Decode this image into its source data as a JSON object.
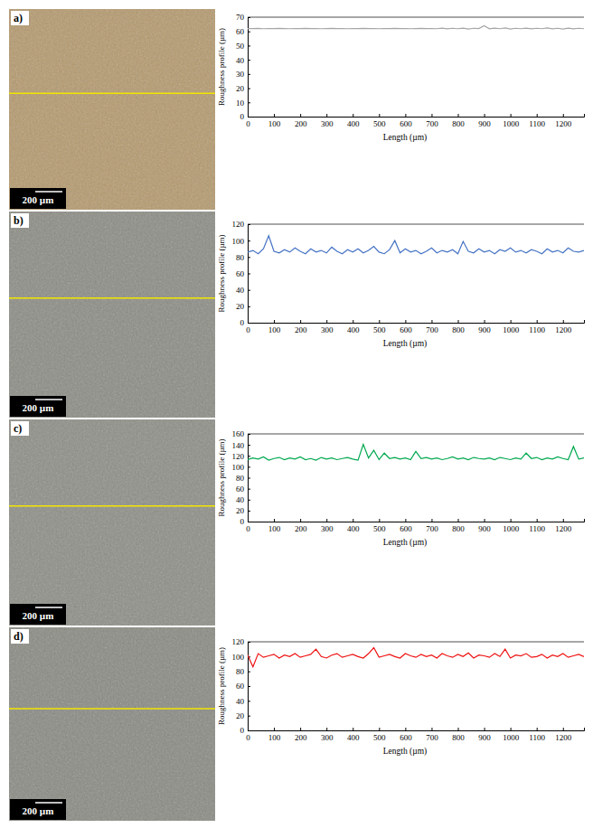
{
  "chart_data": [
    {
      "type": "line",
      "x_label": "Length (µm)",
      "y_label": "Roughness profile (µm)",
      "x": [
        0,
        20,
        40,
        60,
        80,
        100,
        120,
        140,
        160,
        180,
        200,
        220,
        240,
        260,
        280,
        300,
        320,
        340,
        360,
        380,
        400,
        420,
        440,
        460,
        480,
        500,
        520,
        540,
        560,
        580,
        600,
        620,
        640,
        660,
        680,
        700,
        720,
        740,
        760,
        780,
        800,
        820,
        840,
        860,
        880,
        900,
        920,
        940,
        960,
        980,
        1000,
        1020,
        1040,
        1060,
        1080,
        1100,
        1120,
        1140,
        1160,
        1180,
        1200,
        1220,
        1240,
        1260,
        1280
      ],
      "series": [
        {
          "color": "#a6a6a6",
          "values": [
            62,
            62,
            62.1,
            61.9,
            62,
            62,
            62.1,
            62,
            61.9,
            62,
            62,
            62.1,
            62,
            62,
            61.9,
            62,
            62.1,
            62,
            62,
            61.9,
            62,
            62,
            62.1,
            62,
            62,
            61.9,
            62,
            62,
            62.1,
            62,
            62,
            61.9,
            62,
            62.1,
            62,
            62,
            61.9,
            62.3,
            61.8,
            62.2,
            61.9,
            62.3,
            61.7,
            62.2,
            62,
            64,
            61.8,
            62.3,
            61.9,
            62.4,
            61.7,
            62.2,
            61.9,
            62.3,
            61.8,
            62.2,
            61.9,
            62.4,
            61.8,
            62.2,
            61.7,
            62.3,
            61.8,
            62.2,
            61.9
          ]
        }
      ],
      "xlim": [
        0,
        1280
      ],
      "xticks": [
        0,
        100,
        200,
        300,
        400,
        500,
        600,
        700,
        800,
        900,
        1000,
        1100,
        1200
      ],
      "ylim": [
        0,
        70
      ],
      "yticks": [
        0,
        10,
        20,
        30,
        40,
        50,
        60,
        70
      ]
    },
    {
      "type": "line",
      "x_label": "Length (µm)",
      "y_label": "Roughness profile (µm)",
      "x": [
        0,
        20,
        40,
        60,
        80,
        100,
        120,
        140,
        160,
        180,
        200,
        220,
        240,
        260,
        280,
        300,
        320,
        340,
        360,
        380,
        400,
        420,
        440,
        460,
        480,
        500,
        520,
        540,
        560,
        580,
        600,
        620,
        640,
        660,
        680,
        700,
        720,
        740,
        760,
        780,
        800,
        820,
        840,
        860,
        880,
        900,
        920,
        940,
        960,
        980,
        1000,
        1020,
        1040,
        1060,
        1080,
        1100,
        1120,
        1140,
        1160,
        1180,
        1200,
        1220,
        1240,
        1260,
        1280
      ],
      "series": [
        {
          "color": "#4472c4",
          "values": [
            86,
            88,
            84,
            90,
            106,
            87,
            85,
            89,
            86,
            91,
            87,
            84,
            90,
            86,
            88,
            85,
            92,
            87,
            84,
            89,
            86,
            90,
            85,
            88,
            93,
            86,
            84,
            89,
            100,
            85,
            90,
            86,
            88,
            84,
            87,
            91,
            85,
            88,
            86,
            89,
            84,
            99,
            87,
            85,
            90,
            86,
            88,
            84,
            89,
            87,
            91,
            86,
            88,
            85,
            89,
            87,
            84,
            90,
            86,
            88,
            85,
            91,
            87,
            86,
            88
          ]
        }
      ],
      "xlim": [
        0,
        1280
      ],
      "xticks": [
        0,
        100,
        200,
        300,
        400,
        500,
        600,
        700,
        800,
        900,
        1000,
        1100,
        1200
      ],
      "ylim": [
        0,
        120
      ],
      "yticks": [
        0,
        20,
        40,
        60,
        80,
        100,
        120
      ]
    },
    {
      "type": "line",
      "x_label": "Length (µm)",
      "y_label": "Roughness profile (µm)",
      "x": [
        0,
        20,
        40,
        60,
        80,
        100,
        120,
        140,
        160,
        180,
        200,
        220,
        240,
        260,
        280,
        300,
        320,
        340,
        360,
        380,
        400,
        420,
        440,
        460,
        480,
        500,
        520,
        540,
        560,
        580,
        600,
        620,
        640,
        660,
        680,
        700,
        720,
        740,
        760,
        780,
        800,
        820,
        840,
        860,
        880,
        900,
        920,
        940,
        960,
        980,
        1000,
        1020,
        1040,
        1060,
        1080,
        1100,
        1120,
        1140,
        1160,
        1180,
        1200,
        1220,
        1240,
        1260,
        1280
      ],
      "series": [
        {
          "color": "#00a84f",
          "values": [
            113,
            116,
            114,
            118,
            112,
            115,
            117,
            113,
            116,
            114,
            118,
            113,
            115,
            112,
            117,
            114,
            116,
            113,
            115,
            117,
            114,
            112,
            141,
            116,
            130,
            113,
            125,
            115,
            117,
            114,
            116,
            113,
            128,
            115,
            117,
            114,
            116,
            113,
            115,
            118,
            114,
            116,
            113,
            117,
            115,
            114,
            116,
            113,
            117,
            115,
            113,
            116,
            114,
            125,
            115,
            117,
            113,
            116,
            114,
            118,
            115,
            113,
            137,
            114,
            116
          ]
        }
      ],
      "xlim": [
        0,
        1280
      ],
      "xticks": [
        0,
        100,
        200,
        300,
        400,
        500,
        600,
        700,
        800,
        900,
        1000,
        1100,
        1200
      ],
      "ylim": [
        0,
        160
      ],
      "yticks": [
        0,
        20,
        40,
        60,
        80,
        100,
        120,
        140,
        160
      ]
    },
    {
      "type": "line",
      "x_label": "Length (µm)",
      "y_label": "Roughness profile (µm)",
      "x": [
        0,
        20,
        40,
        60,
        80,
        100,
        120,
        140,
        160,
        180,
        200,
        220,
        240,
        260,
        280,
        300,
        320,
        340,
        360,
        380,
        400,
        420,
        440,
        460,
        480,
        500,
        520,
        540,
        560,
        580,
        600,
        620,
        640,
        660,
        680,
        700,
        720,
        740,
        760,
        780,
        800,
        820,
        840,
        860,
        880,
        900,
        920,
        940,
        960,
        980,
        1000,
        1020,
        1040,
        1060,
        1080,
        1100,
        1120,
        1140,
        1160,
        1180,
        1200,
        1220,
        1240,
        1260,
        1280
      ],
      "series": [
        {
          "color": "#ee1111",
          "values": [
            102,
            86,
            104,
            99,
            101,
            103,
            98,
            102,
            100,
            104,
            99,
            101,
            103,
            110,
            100,
            98,
            102,
            104,
            99,
            101,
            103,
            100,
            98,
            104,
            112,
            99,
            101,
            103,
            100,
            98,
            104,
            101,
            99,
            103,
            100,
            102,
            98,
            104,
            101,
            99,
            103,
            100,
            105,
            98,
            102,
            101,
            99,
            104,
            100,
            110,
            98,
            102,
            101,
            104,
            99,
            100,
            103,
            98,
            102,
            100,
            104,
            99,
            101,
            103,
            100
          ]
        }
      ],
      "xlim": [
        0,
        1280
      ],
      "xticks": [
        0,
        100,
        200,
        300,
        400,
        500,
        600,
        700,
        800,
        900,
        1000,
        1100,
        1200
      ],
      "ylim": [
        0,
        120
      ],
      "yticks": [
        0,
        20,
        40,
        60,
        80,
        100,
        120
      ]
    }
  ],
  "micrographs": [
    {
      "panel": "a)",
      "scale_bar": "200 µm"
    },
    {
      "panel": "b)",
      "scale_bar": "200 µm"
    },
    {
      "panel": "c)",
      "scale_bar": "200 µm"
    },
    {
      "panel": "d)",
      "scale_bar": "200 µm"
    }
  ]
}
